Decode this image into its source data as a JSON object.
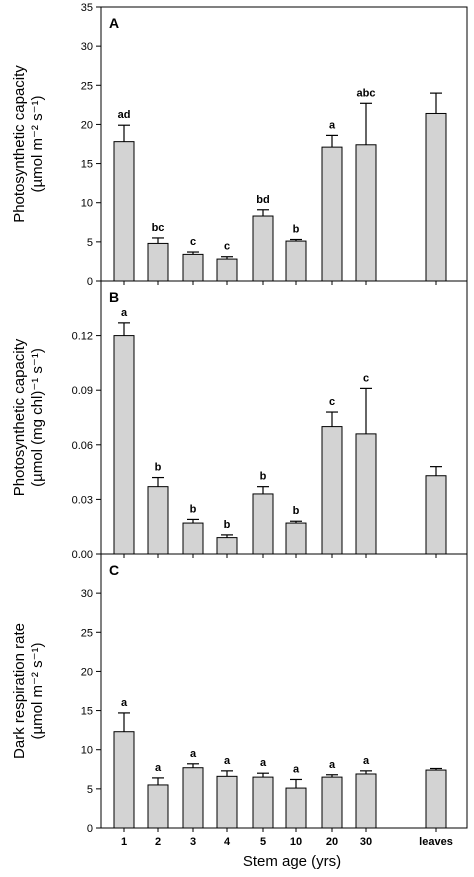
{
  "chart_data": [
    {
      "type": "bar",
      "panel": "A",
      "ylabel_line1": "Photosynthetic capacity",
      "ylabel_line2": "(µmol m⁻² s⁻¹)",
      "ylim": [
        0,
        35
      ],
      "yticks": [
        0,
        5,
        10,
        15,
        20,
        25,
        30,
        35
      ],
      "ytick_labels": [
        "0",
        "5",
        "10",
        "15",
        "20",
        "25",
        "30",
        "35"
      ],
      "categories": [
        "1",
        "2",
        "3",
        "4",
        "5",
        "10",
        "20",
        "30",
        "leaves"
      ],
      "values": [
        17.8,
        4.8,
        3.4,
        2.8,
        8.3,
        5.1,
        17.1,
        17.4,
        21.4
      ],
      "errors": [
        2.1,
        0.7,
        0.3,
        0.3,
        0.8,
        0.2,
        1.5,
        5.3,
        2.6
      ],
      "sig_letters": [
        "ad",
        "bc",
        "c",
        "c",
        "bd",
        "b",
        "a",
        "abc",
        ""
      ],
      "grid": false,
      "bar_color": "#d3d3d3"
    },
    {
      "type": "bar",
      "panel": "B",
      "ylabel_line1": "Photosynthetic capacity",
      "ylabel_line2": "(µmol (mg chl)⁻¹ s⁻¹)",
      "ylim": [
        0,
        0.15
      ],
      "yticks": [
        0,
        0.03,
        0.06,
        0.09,
        0.12
      ],
      "ytick_labels": [
        "0.00",
        "0.03",
        "0.06",
        "0.09",
        "0.12"
      ],
      "categories": [
        "1",
        "2",
        "3",
        "4",
        "5",
        "10",
        "20",
        "30",
        "leaves"
      ],
      "values": [
        0.12,
        0.037,
        0.017,
        0.009,
        0.033,
        0.017,
        0.07,
        0.066,
        0.043
      ],
      "errors": [
        0.007,
        0.005,
        0.002,
        0.0015,
        0.004,
        0.001,
        0.008,
        0.025,
        0.005
      ],
      "sig_letters": [
        "a",
        "b",
        "b",
        "b",
        "b",
        "b",
        "c",
        "c",
        ""
      ],
      "grid": false,
      "bar_color": "#d3d3d3"
    },
    {
      "type": "bar",
      "panel": "C",
      "ylabel_line1": "Dark respiration rate",
      "ylabel_line2": "(µmol m⁻² s⁻¹)",
      "ylim": [
        0,
        35
      ],
      "yticks": [
        0,
        5,
        10,
        15,
        20,
        25,
        30
      ],
      "ytick_labels": [
        "0",
        "5",
        "10",
        "15",
        "20",
        "25",
        "30"
      ],
      "categories": [
        "1",
        "2",
        "3",
        "4",
        "5",
        "10",
        "20",
        "30",
        "leaves"
      ],
      "values": [
        12.3,
        5.5,
        7.7,
        6.6,
        6.5,
        5.1,
        6.5,
        6.9,
        7.4
      ],
      "errors": [
        2.4,
        0.9,
        0.5,
        0.7,
        0.5,
        1.1,
        0.3,
        0.4,
        0.2
      ],
      "sig_letters": [
        "a",
        "a",
        "a",
        "a",
        "a",
        "a",
        "a",
        "a",
        ""
      ],
      "grid": false,
      "bar_color": "#d3d3d3"
    }
  ],
  "xlabel": "Stem age (yrs)"
}
